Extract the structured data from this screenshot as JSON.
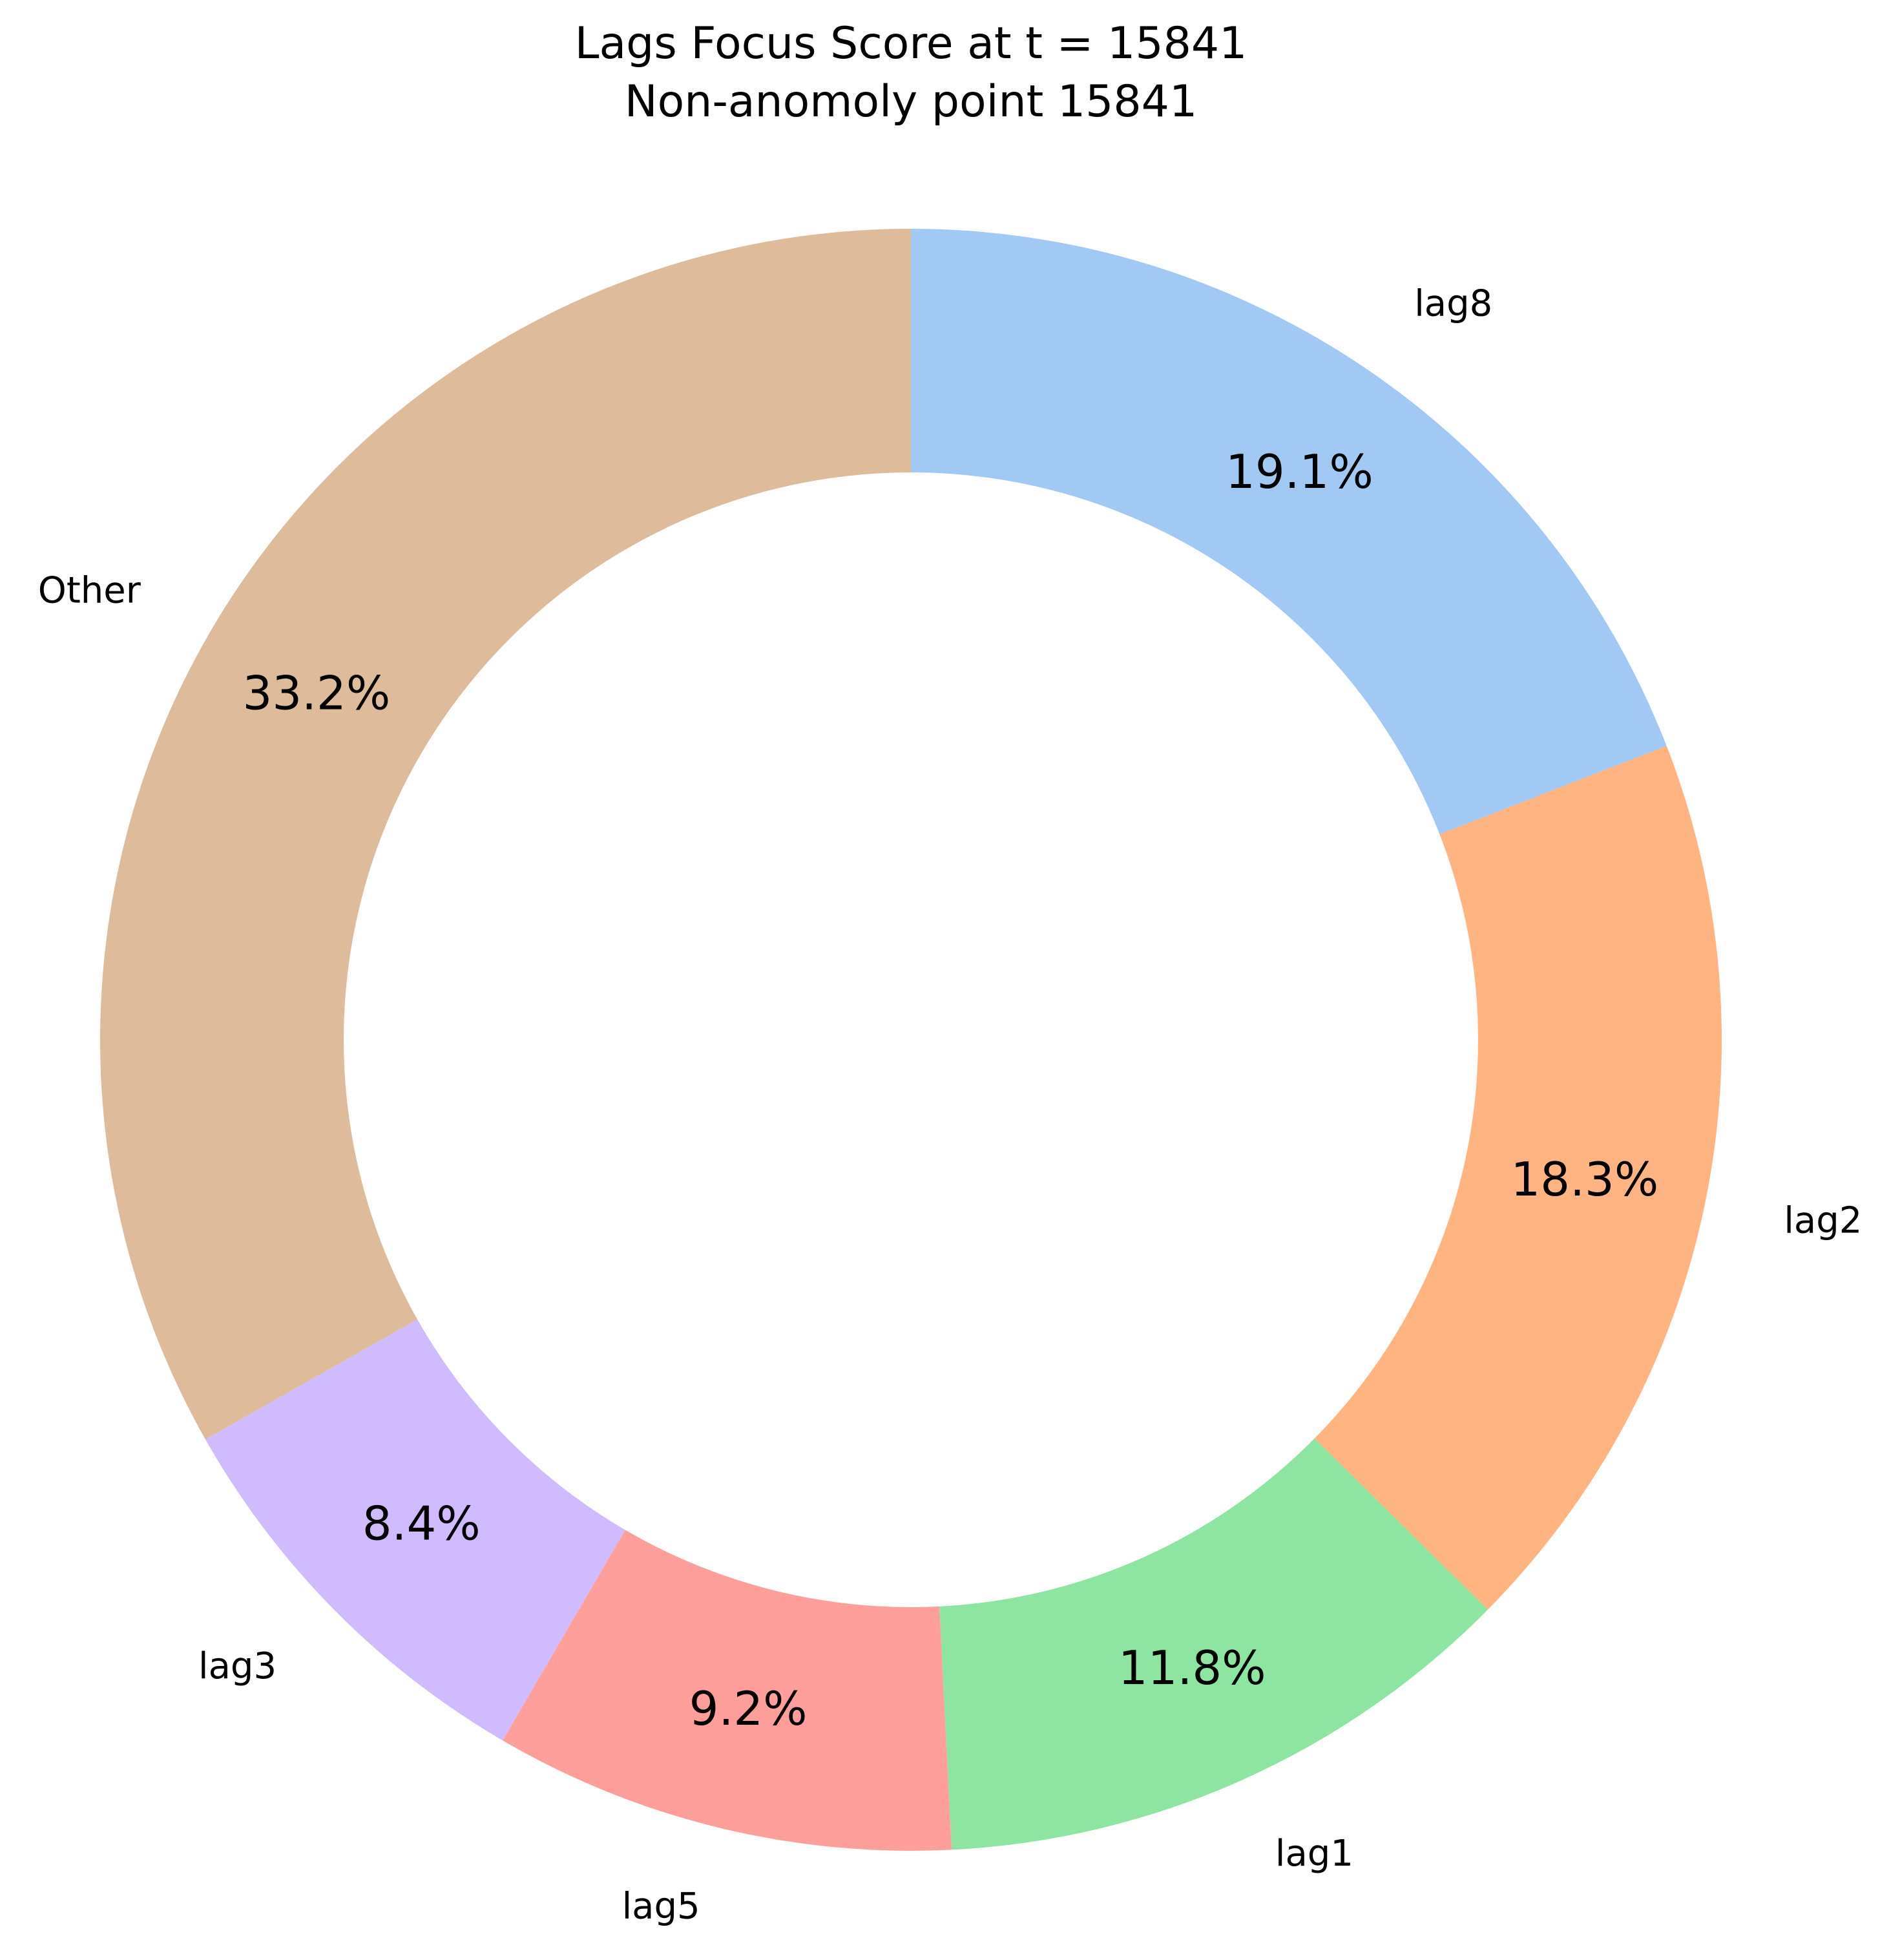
{
  "chart_data": {
    "type": "pie",
    "donut": true,
    "title": "Lags Focus Score at t = 15841",
    "subtitle": "Non-anomoly point 15841",
    "start_angle_deg": 90,
    "direction": "clockwise",
    "slices": [
      {
        "label": "lag8",
        "value": 19.1,
        "pct_label": "19.1%",
        "color": "#a1c9f4"
      },
      {
        "label": "lag2",
        "value": 18.3,
        "pct_label": "18.3%",
        "color": "#ffb482"
      },
      {
        "label": "lag1",
        "value": 11.8,
        "pct_label": "11.8%",
        "color": "#8de5a1"
      },
      {
        "label": "lag5",
        "value": 9.2,
        "pct_label": "9.2%",
        "color": "#ff9f9b"
      },
      {
        "label": "lag3",
        "value": 8.4,
        "pct_label": "8.4%",
        "color": "#d0bbff"
      },
      {
        "label": "Other",
        "value": 33.2,
        "pct_label": "33.2%",
        "color": "#debb9b"
      }
    ]
  }
}
